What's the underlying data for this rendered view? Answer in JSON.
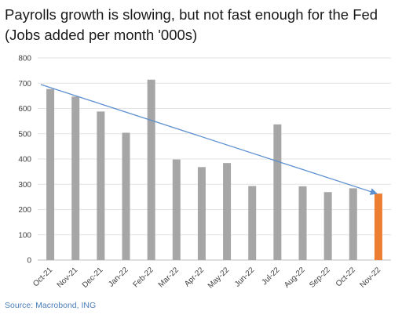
{
  "title_line1": "Payrolls growth is slowing, but not fast enough for the Fed",
  "title_line2": "(Jobs added per month '000s)",
  "source": "Source: Macrobond, ING",
  "chart_data": {
    "type": "bar",
    "categories": [
      "Oct-21",
      "Nov-21",
      "Dec-21",
      "Jan-22",
      "Feb-22",
      "Mar-22",
      "Apr-22",
      "May-22",
      "Jun-22",
      "Jul-22",
      "Aug-22",
      "Sep-22",
      "Oct-22",
      "Nov-22"
    ],
    "values": [
      677,
      647,
      588,
      504,
      714,
      398,
      368,
      384,
      293,
      537,
      292,
      269,
      284,
      263
    ],
    "yticks": [
      0,
      100,
      200,
      300,
      400,
      500,
      600,
      700,
      800
    ],
    "ylim": [
      0,
      800
    ],
    "bar_color": "#a6a6a6",
    "highlight_color": "#ed7d31",
    "highlight_index": 13,
    "trend_line": {
      "from": 695,
      "to": 263,
      "color": "#5b8fd0"
    },
    "grid": true
  }
}
